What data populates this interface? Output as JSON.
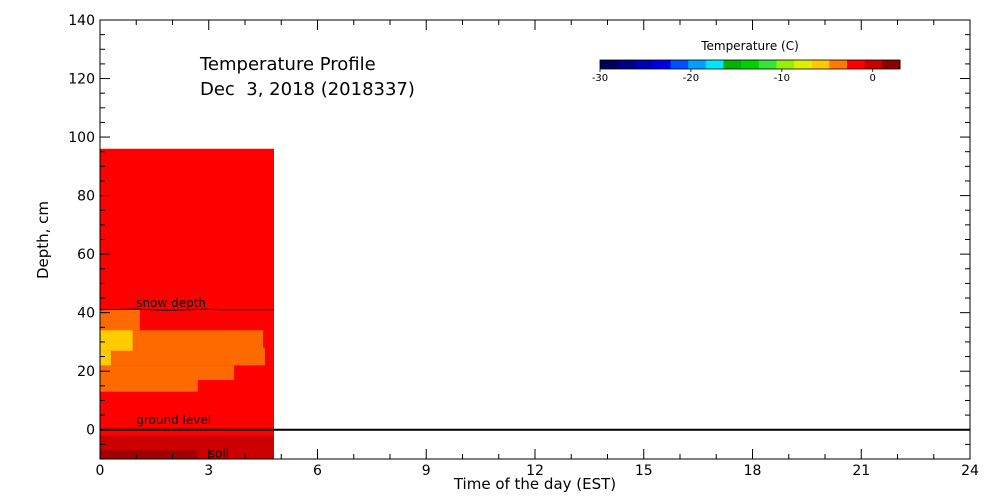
{
  "chart_data": {
    "type": "heatmap",
    "title": "Temperature Profile",
    "subtitle": "Dec  3, 2018 (2018337)",
    "xlabel": "Time of the day (EST)",
    "ylabel": "Depth, cm",
    "xlim": [
      0,
      24
    ],
    "ylim": [
      -10,
      140
    ],
    "x_ticks": [
      0,
      3,
      6,
      9,
      12,
      15,
      18,
      21,
      24
    ],
    "y_ticks": [
      0,
      20,
      40,
      60,
      80,
      100,
      120,
      140
    ],
    "grid": false,
    "colorbar": {
      "title": "Temperature (C)",
      "range": [
        -30,
        3
      ],
      "tick_values": [
        -30,
        -20,
        -10,
        0
      ],
      "tick_labels": [
        "-30",
        "-20",
        "-10",
        "0"
      ],
      "colors": [
        "#00005a",
        "#000080",
        "#0000b4",
        "#0000e6",
        "#0050ff",
        "#00a0ff",
        "#00e6ff",
        "#00b400",
        "#00d200",
        "#32e632",
        "#96f000",
        "#dcf000",
        "#ffc800",
        "#ff7800",
        "#ff0000",
        "#c80000",
        "#8c0000"
      ]
    },
    "cells": [
      {
        "x0": 0,
        "x1": 4.8,
        "y0": -10,
        "y1": 96,
        "temp": 0.5,
        "color": "#ff0000"
      },
      {
        "x0": 0,
        "x1": 4.8,
        "y0": -10,
        "y1": -2,
        "temp": 1.5,
        "color": "#cc0000"
      },
      {
        "x0": 0,
        "x1": 2.7,
        "y0": -10,
        "y1": -7,
        "temp": 2.5,
        "color": "#a00000"
      },
      {
        "x0": 0,
        "x1": 1.1,
        "y0": 34,
        "y1": 41,
        "temp": -1.0,
        "color": "#ff6a00"
      },
      {
        "x0": 0,
        "x1": 4.5,
        "y0": 27,
        "y1": 34,
        "temp": -1.0,
        "color": "#ff6a00"
      },
      {
        "x0": 0,
        "x1": 4.55,
        "y0": 22,
        "y1": 28,
        "temp": -1.0,
        "color": "#ff6a00"
      },
      {
        "x0": 0,
        "x1": 3.7,
        "y0": 17,
        "y1": 22,
        "temp": -1.0,
        "color": "#ff6a00"
      },
      {
        "x0": 0,
        "x1": 2.7,
        "y0": 13,
        "y1": 17,
        "temp": -1.0,
        "color": "#ff6a00"
      },
      {
        "x0": 0,
        "x1": 0.9,
        "y0": 27,
        "y1": 34,
        "temp": -2.0,
        "color": "#ffcc00"
      },
      {
        "x0": 0,
        "x1": 0.3,
        "y0": 22,
        "y1": 27,
        "temp": -2.0,
        "color": "#ffcc00"
      }
    ],
    "lines": [
      {
        "label": "snow depth",
        "x": [
          0,
          1,
          1.9,
          2.9,
          3.3,
          4.8
        ],
        "y": [
          41,
          41.2,
          40.8,
          41.2,
          41,
          41
        ],
        "color": "#000000"
      },
      {
        "label": "ground level",
        "x": [
          0,
          24
        ],
        "y": [
          0,
          0
        ],
        "color": "#000000"
      }
    ],
    "annotations": [
      {
        "text": "snow depth",
        "x": 1.0,
        "y": 42
      },
      {
        "text": "ground level",
        "x": 1.0,
        "y": 2
      },
      {
        "text": "soil",
        "x": 3.0,
        "y": -9.5
      }
    ]
  }
}
